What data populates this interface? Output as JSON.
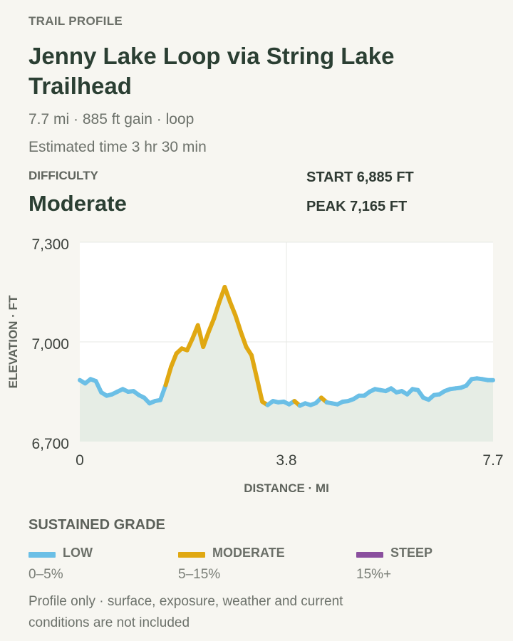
{
  "header": {
    "eyebrow": "TRAIL PROFILE",
    "title": "Jenny Lake Loop via String Lake Trailhead",
    "summary": "7.7 mi · 885 ft gain · loop",
    "estimate": "Estimated time 3 hr 30 min"
  },
  "difficulty": {
    "label": "DIFFICULTY",
    "value": "Moderate"
  },
  "stats": {
    "start": "START 6,885 FT",
    "peak": "PEAK 7,165 FT"
  },
  "chart_data": {
    "type": "line",
    "xlabel": "DISTANCE · MI",
    "ylabel": "ELEVATION · FT",
    "xlim": [
      0,
      7.7
    ],
    "ylim": [
      6700,
      7300
    ],
    "xticks": [
      "0",
      "3.8",
      "7.7"
    ],
    "yticks": [
      "6,700",
      "7,000",
      "7,300"
    ],
    "grid": true,
    "area_fill": true,
    "colors": {
      "low": "#6bbfe6",
      "moderate": "#e0a812",
      "steep": "#8a4f9e",
      "area": "#e6ede5"
    },
    "series": [
      {
        "name": "Elevation",
        "x": [
          0,
          0.1,
          0.2,
          0.3,
          0.4,
          0.5,
          0.6,
          0.7,
          0.8,
          0.9,
          1.0,
          1.1,
          1.2,
          1.3,
          1.4,
          1.5,
          1.6,
          1.7,
          1.8,
          1.9,
          2.0,
          2.1,
          2.2,
          2.3,
          2.4,
          2.5,
          2.6,
          2.7,
          2.8,
          2.9,
          3.0,
          3.1,
          3.2,
          3.3,
          3.4,
          3.5,
          3.6,
          3.7,
          3.8,
          3.9,
          4.0,
          4.1,
          4.2,
          4.3,
          4.4,
          4.5,
          4.6,
          4.7,
          4.8,
          4.9,
          5.0,
          5.1,
          5.2,
          5.3,
          5.4,
          5.5,
          5.6,
          5.7,
          5.8,
          5.9,
          6.0,
          6.1,
          6.2,
          6.3,
          6.4,
          6.5,
          6.6,
          6.7,
          6.8,
          6.9,
          7.0,
          7.1,
          7.2,
          7.3,
          7.4,
          7.5,
          7.6,
          7.7
        ],
        "y": [
          6885,
          6875,
          6888,
          6882,
          6848,
          6838,
          6842,
          6850,
          6858,
          6850,
          6852,
          6840,
          6832,
          6815,
          6822,
          6825,
          6870,
          6925,
          6965,
          6980,
          6975,
          7010,
          7050,
          6985,
          7030,
          7070,
          7120,
          7165,
          7120,
          7080,
          7030,
          6985,
          6960,
          6890,
          6820,
          6810,
          6822,
          6818,
          6820,
          6812,
          6822,
          6808,
          6815,
          6810,
          6816,
          6832,
          6818,
          6815,
          6812,
          6820,
          6822,
          6828,
          6838,
          6838,
          6850,
          6858,
          6855,
          6852,
          6860,
          6848,
          6852,
          6842,
          6858,
          6855,
          6832,
          6826,
          6840,
          6842,
          6852,
          6858,
          6860,
          6862,
          6868,
          6888,
          6890,
          6888,
          6885,
          6885
        ],
        "grade": [
          "low",
          "low",
          "low",
          "low",
          "low",
          "low",
          "low",
          "low",
          "low",
          "low",
          "low",
          "low",
          "low",
          "low",
          "low",
          "low",
          "moderate",
          "moderate",
          "moderate",
          "moderate",
          "moderate",
          "moderate",
          "moderate",
          "moderate",
          "moderate",
          "moderate",
          "moderate",
          "moderate",
          "moderate",
          "moderate",
          "moderate",
          "moderate",
          "moderate",
          "moderate",
          "moderate",
          "low",
          "low",
          "low",
          "low",
          "low",
          "moderate",
          "low",
          "low",
          "low",
          "low",
          "moderate",
          "low",
          "low",
          "low",
          "low",
          "low",
          "low",
          "low",
          "low",
          "low",
          "low",
          "low",
          "low",
          "low",
          "low",
          "low",
          "low",
          "low",
          "low",
          "low",
          "low",
          "low",
          "low",
          "low",
          "low",
          "low",
          "low",
          "low",
          "low",
          "low",
          "low",
          "low",
          "low"
        ]
      }
    ]
  },
  "legend": {
    "title": "SUSTAINED GRADE",
    "items": [
      {
        "label": "LOW",
        "range": "0–5%",
        "color": "#6bbfe6"
      },
      {
        "label": "MODERATE",
        "range": "5–15%",
        "color": "#e0a812"
      },
      {
        "label": "STEEP",
        "range": "15%+",
        "color": "#8a4f9e"
      }
    ]
  },
  "footnote": "Profile only · surface, exposure, weather and current conditions are not included"
}
